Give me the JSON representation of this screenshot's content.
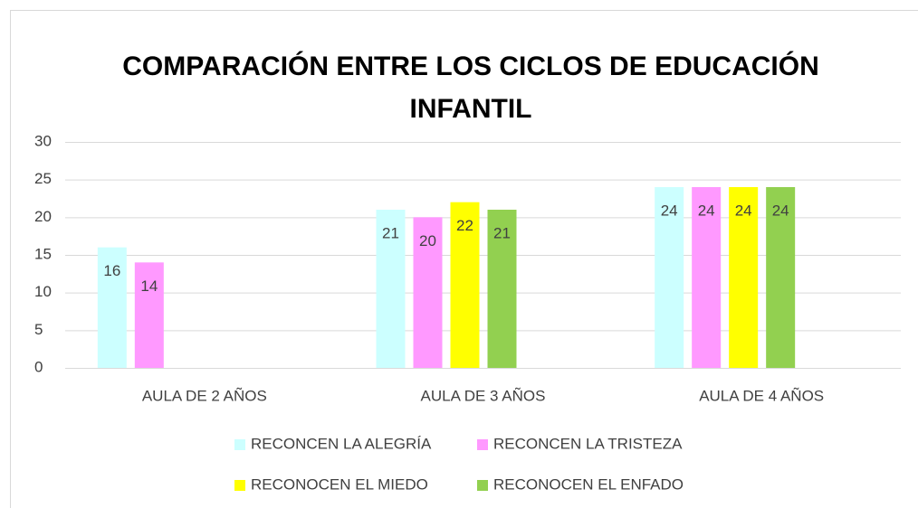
{
  "chart_data": {
    "type": "bar",
    "title": [
      "COMPARACIÓN ENTRE LOS CICLOS DE EDUCACIÓN",
      "INFANTIL"
    ],
    "categories": [
      "AULA DE 2 AÑOS",
      "AULA DE 3 AÑOS",
      "AULA DE 4 AÑOS"
    ],
    "series": [
      {
        "name": "RECONCEN LA ALEGRÍA",
        "color": "#ccffff",
        "values": [
          16,
          21,
          24
        ]
      },
      {
        "name": "RECONCEN LA TRISTEZA",
        "color": "#ff99ff",
        "values": [
          14,
          20,
          24
        ]
      },
      {
        "name": "RECONOCEN EL MIEDO",
        "color": "#ffff00",
        "values": [
          null,
          22,
          24
        ]
      },
      {
        "name": "RECONOCEN EL ENFADO",
        "color": "#92d050",
        "values": [
          null,
          21,
          24
        ]
      }
    ],
    "ylim": [
      0,
      30
    ],
    "yticks": [
      0,
      5,
      10,
      15,
      20,
      25,
      30
    ],
    "grid": true,
    "legend": "bottom"
  }
}
